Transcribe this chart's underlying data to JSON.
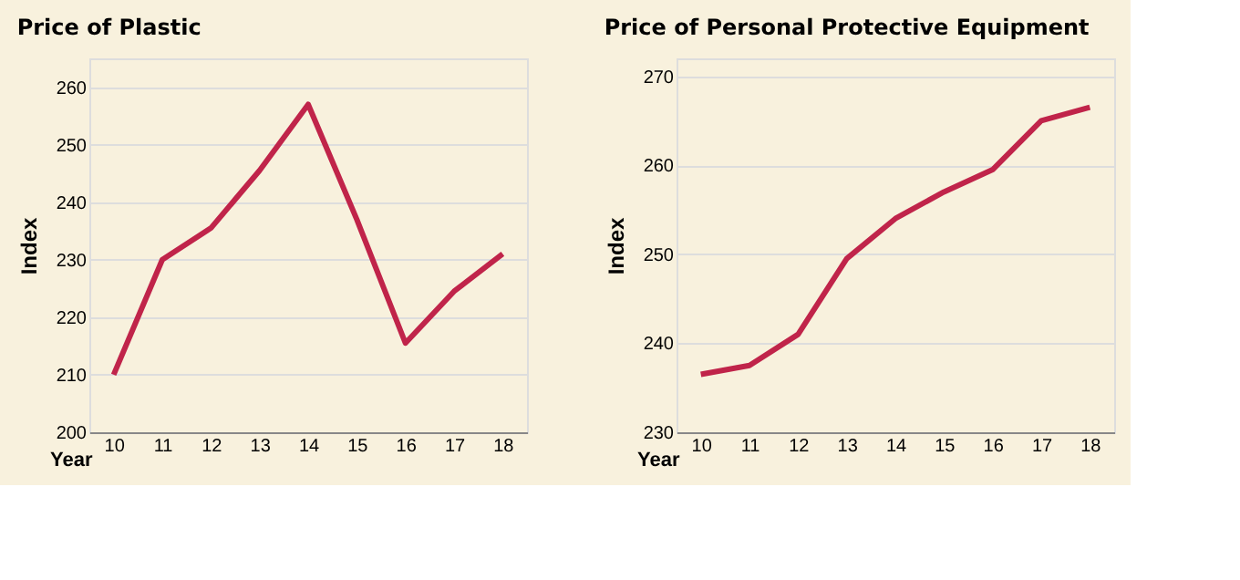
{
  "chart_data": [
    {
      "type": "line",
      "title": "Price of Plastic",
      "xlabel": "Year",
      "ylabel": "Index",
      "categories": [
        "10",
        "11",
        "12",
        "13",
        "14",
        "15",
        "16",
        "17",
        "18"
      ],
      "series": [
        {
          "color": "#c0244a",
          "values": [
            210,
            230,
            235.5,
            245.5,
            257,
            237,
            215.5,
            224.5,
            231
          ]
        }
      ],
      "ylim": [
        200,
        265
      ],
      "yticks": [
        200,
        210,
        220,
        230,
        240,
        250,
        260
      ],
      "grid": "y",
      "marker": "none",
      "line_style": "solid"
    },
    {
      "type": "line",
      "title": "Price of Personal Protective Equipment",
      "xlabel": "Year",
      "ylabel": "Index",
      "categories": [
        "10",
        "11",
        "12",
        "13",
        "14",
        "15",
        "16",
        "17",
        "18"
      ],
      "series": [
        {
          "color": "#c0244a",
          "values": [
            236.5,
            237.5,
            241,
            249.5,
            254,
            257,
            259.5,
            265,
            266.5
          ]
        }
      ],
      "ylim": [
        230,
        272
      ],
      "yticks": [
        230,
        240,
        250,
        260,
        270
      ],
      "grid": "y",
      "marker": "none",
      "line_style": "solid"
    }
  ]
}
